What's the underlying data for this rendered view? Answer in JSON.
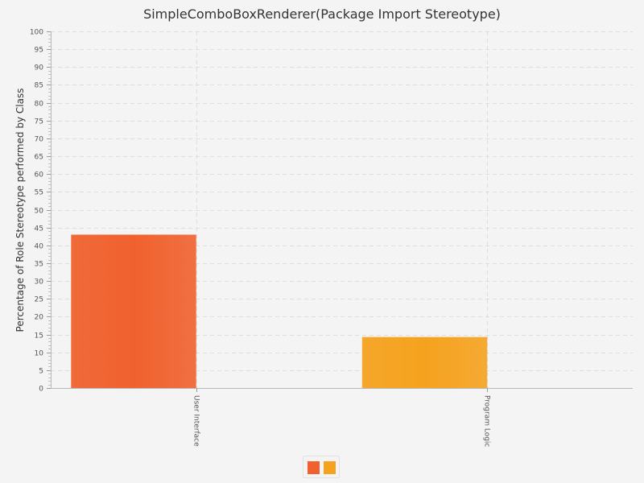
{
  "chart_data": {
    "type": "bar",
    "title": "SimpleComboBoxRenderer(Package Import Stereotype)",
    "xlabel": "",
    "ylabel": "Percentage of Role Stereotype performed by Class",
    "categories": [
      "User Interface",
      "Program Logic"
    ],
    "series": [
      {
        "values": [
          43,
          14.3
        ]
      },
      {
        "values": [
          0,
          0
        ]
      }
    ],
    "bar_colors": [
      "#f0612e",
      "#f5a21e"
    ],
    "legend_colors": [
      "#f0612e",
      "#f5a21e"
    ],
    "ylim": [
      0,
      100
    ],
    "ytick_step": 5,
    "grid": true,
    "legend_position": "bottom-center"
  }
}
